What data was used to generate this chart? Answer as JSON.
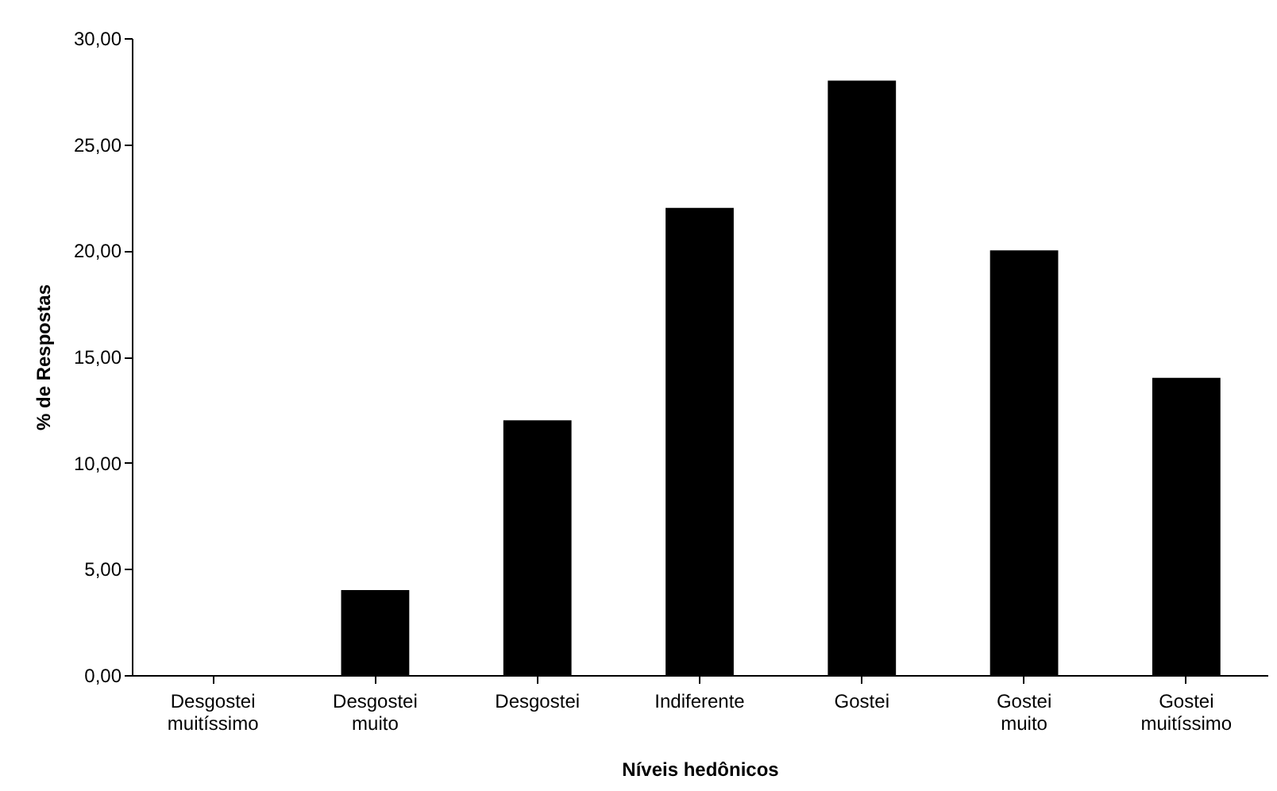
{
  "chart_data": {
    "type": "bar",
    "xlabel": "Níveis hedônicos",
    "ylabel": "% de Respostas",
    "categories": [
      "Desgostei muitíssimo",
      "Desgostei muito",
      "Desgostei",
      "Indiferente",
      "Gostei",
      "Gostei muito",
      "Gostei muitíssimo"
    ],
    "values": [
      0,
      4,
      12,
      22,
      28,
      20,
      14
    ],
    "color": "#000000",
    "ylim": [
      0,
      30
    ],
    "yticks": [
      {
        "value": 0,
        "label": "0,00"
      },
      {
        "value": 5,
        "label": "5,00"
      },
      {
        "value": 10,
        "label": "10,00"
      },
      {
        "value": 15,
        "label": "15,00"
      },
      {
        "value": 20,
        "label": "20,00"
      },
      {
        "value": 25,
        "label": "25,00"
      },
      {
        "value": 30,
        "label": "30,00"
      }
    ],
    "grid": false
  }
}
